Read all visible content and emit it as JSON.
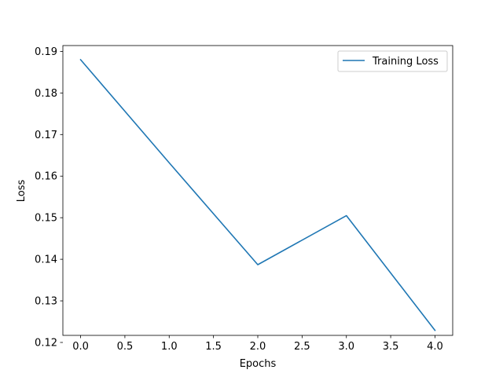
{
  "chart_data": {
    "type": "line",
    "title": "",
    "xlabel": "Epochs",
    "ylabel": "Loss",
    "xlim": [
      -0.2,
      4.2
    ],
    "ylim": [
      0.1217,
      0.1914
    ],
    "x_ticks": [
      0.0,
      0.5,
      1.0,
      1.5,
      2.0,
      2.5,
      3.0,
      3.5,
      4.0
    ],
    "x_tick_labels": [
      "0.0",
      "0.5",
      "1.0",
      "1.5",
      "2.0",
      "2.5",
      "3.0",
      "3.5",
      "4.0"
    ],
    "y_ticks": [
      0.12,
      0.13,
      0.14,
      0.15,
      0.16,
      0.17,
      0.18,
      0.19
    ],
    "y_tick_labels": [
      "0.12",
      "0.13",
      "0.14",
      "0.15",
      "0.16",
      "0.17",
      "0.18",
      "0.19"
    ],
    "grid": false,
    "legend_position": "top-right",
    "series": [
      {
        "name": "Training Loss",
        "color": "#1f77b4",
        "x": [
          0,
          1,
          2,
          3,
          4
        ],
        "y": [
          0.188,
          0.1632,
          0.1387,
          0.1505,
          0.1229
        ]
      }
    ]
  }
}
